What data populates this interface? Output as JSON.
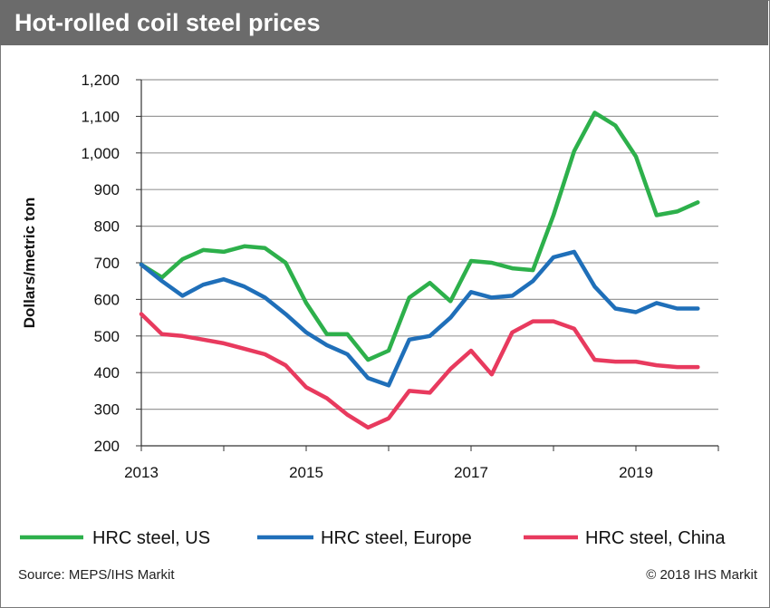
{
  "chart_data": {
    "type": "line",
    "title": "Hot-rolled coil steel prices",
    "ylabel": "Dollars/metric ton",
    "xlabel": "",
    "ylim": [
      200,
      1200
    ],
    "yticks": [
      200,
      300,
      400,
      500,
      600,
      700,
      800,
      900,
      1000,
      1100,
      1200
    ],
    "ytick_labels": [
      "200",
      "300",
      "400",
      "500",
      "600",
      "700",
      "800",
      "900",
      "1,000",
      "1,100",
      "1,200"
    ],
    "xlim": [
      2013.0,
      2020.0
    ],
    "xtick_labels": [
      "2013",
      "2015",
      "2017",
      "2019"
    ],
    "xtick_values": [
      2013,
      2015,
      2017,
      2019
    ],
    "grid": true,
    "legend_position": "bottom",
    "x": [
      2013.0,
      2013.25,
      2013.5,
      2013.75,
      2014.0,
      2014.25,
      2014.5,
      2014.75,
      2015.0,
      2015.25,
      2015.5,
      2015.75,
      2016.0,
      2016.25,
      2016.5,
      2016.75,
      2017.0,
      2017.25,
      2017.5,
      2017.75,
      2018.0,
      2018.25,
      2018.5,
      2018.75,
      2019.0,
      2019.25,
      2019.5,
      2019.75
    ],
    "series": [
      {
        "name": "HRC steel, US",
        "color": "#2db04b",
        "values": [
          695,
          660,
          710,
          735,
          730,
          745,
          740,
          700,
          590,
          505,
          505,
          435,
          460,
          605,
          645,
          595,
          705,
          700,
          685,
          680,
          830,
          1005,
          1110,
          1075,
          990,
          830,
          840,
          865
        ]
      },
      {
        "name": "HRC steel, Europe",
        "color": "#1f6fb9",
        "values": [
          695,
          650,
          610,
          640,
          655,
          635,
          605,
          560,
          510,
          475,
          450,
          385,
          365,
          490,
          500,
          550,
          620,
          605,
          610,
          650,
          715,
          730,
          635,
          575,
          565,
          590,
          575,
          575
        ]
      },
      {
        "name": "HRC steel, China",
        "color": "#e83a5e",
        "values": [
          560,
          505,
          500,
          490,
          480,
          465,
          450,
          420,
          360,
          330,
          285,
          250,
          275,
          350,
          345,
          410,
          460,
          395,
          510,
          540,
          540,
          520,
          435,
          430,
          430,
          420,
          415,
          415
        ]
      }
    ]
  },
  "footer": {
    "source": "Source: MEPS/IHS Markit",
    "copyright": "© 2018 IHS Markit"
  }
}
